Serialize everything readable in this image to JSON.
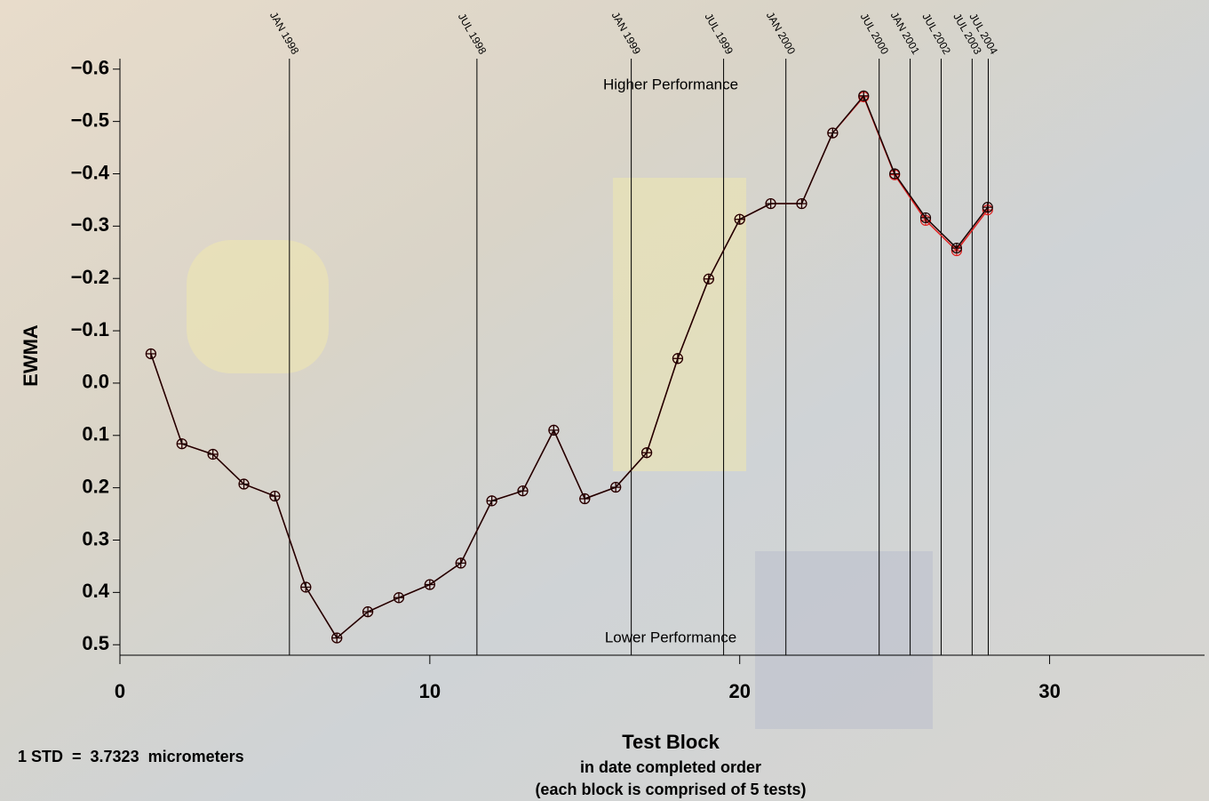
{
  "chart_data": {
    "type": "line",
    "x_label": "Test Block",
    "x_sublabel": "in date completed order",
    "x_sublabel2": "(each block is comprised of 5 tests)",
    "y_label": "EWMA",
    "top_note": "Higher Performance",
    "bottom_note": "Lower Performance",
    "footnote": "1 STD  =  3.7323  micrometers",
    "x": [
      1,
      2,
      3,
      4,
      5,
      6,
      7,
      8,
      9,
      10,
      11,
      12,
      13,
      14,
      15,
      16,
      17,
      18,
      19,
      20,
      21,
      22,
      23,
      24,
      25,
      26,
      27,
      28
    ],
    "series": [
      {
        "color": "#e02020",
        "values": [
          -0.056,
          0.116,
          0.136,
          0.193,
          0.216,
          0.39,
          0.487,
          0.437,
          0.41,
          0.385,
          0.344,
          0.225,
          0.206,
          0.09,
          0.221,
          0.199,
          0.133,
          -0.047,
          -0.199,
          -0.313,
          -0.343,
          -0.343,
          -0.478,
          -0.547,
          -0.398,
          -0.311,
          -0.253,
          -0.331
        ]
      },
      {
        "color": "#1a0000",
        "values": [
          -0.056,
          0.116,
          0.136,
          0.193,
          0.216,
          0.39,
          0.487,
          0.437,
          0.41,
          0.385,
          0.344,
          0.225,
          0.206,
          0.09,
          0.221,
          0.199,
          0.133,
          -0.047,
          -0.199,
          -0.313,
          -0.343,
          -0.343,
          -0.478,
          -0.549,
          -0.4,
          -0.316,
          -0.258,
          -0.336
        ]
      }
    ],
    "xlim": [
      0,
      35
    ],
    "xticks": [
      0,
      10,
      20,
      30
    ],
    "ylim": [
      -0.62,
      0.52
    ],
    "y_inverted": true,
    "yticks": [
      {
        "value": -0.6,
        "label": "−0.6"
      },
      {
        "value": -0.5,
        "label": "−0.5"
      },
      {
        "value": -0.4,
        "label": "−0.4"
      },
      {
        "value": -0.3,
        "label": "−0.3"
      },
      {
        "value": -0.2,
        "label": "−0.2"
      },
      {
        "value": -0.1,
        "label": "−0.1"
      },
      {
        "value": 0,
        "label": "0.0"
      },
      0.1,
      0.2,
      0.3,
      0.4,
      0.5
    ],
    "annotations": [
      {
        "label": "JAN 1998",
        "x": 5.47
      },
      {
        "label": "JUL 1998",
        "x": 11.52
      },
      {
        "label": "JAN 1999",
        "x": 16.5
      },
      {
        "label": "JUL 1999",
        "x": 19.48
      },
      {
        "label": "JAN 2000",
        "x": 21.49
      },
      {
        "label": "JUL 2000",
        "x": 24.5
      },
      {
        "label": "JAN 2001",
        "x": 25.5
      },
      {
        "label": "JUL 2002",
        "x": 26.5
      },
      {
        "label": "JUL 2003",
        "x": 27.5
      },
      {
        "label": "JUL 2004",
        "x": 28.02
      }
    ]
  }
}
